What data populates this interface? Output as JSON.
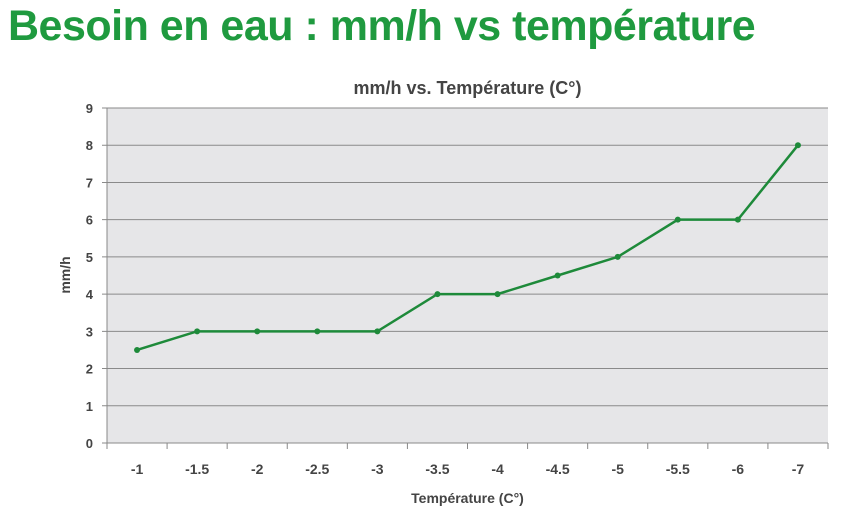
{
  "heading": "Besoin en eau : mm/h vs température",
  "colors": {
    "heading": "#1f9a3f",
    "line": "#1e8a3a",
    "plot_bg": "#e6e6e8",
    "grid": "#8a8a8a"
  },
  "chart_data": {
    "type": "line",
    "title": "mm/h vs. Température (C°)",
    "xlabel": "Température (C°)",
    "ylabel": "mm/h",
    "categories": [
      "-1",
      "-1.5",
      "-2",
      "-2.5",
      "-3",
      "-3.5",
      "-4",
      "-4.5",
      "-5",
      "-5.5",
      "-6",
      "-7"
    ],
    "values": [
      2.5,
      3,
      3,
      3,
      3,
      4,
      4,
      4.5,
      5,
      6,
      6,
      8
    ],
    "ylim": [
      0,
      9
    ],
    "yticks": [
      0,
      1,
      2,
      3,
      4,
      5,
      6,
      7,
      8,
      9
    ],
    "grid": true,
    "legend": "none"
  }
}
